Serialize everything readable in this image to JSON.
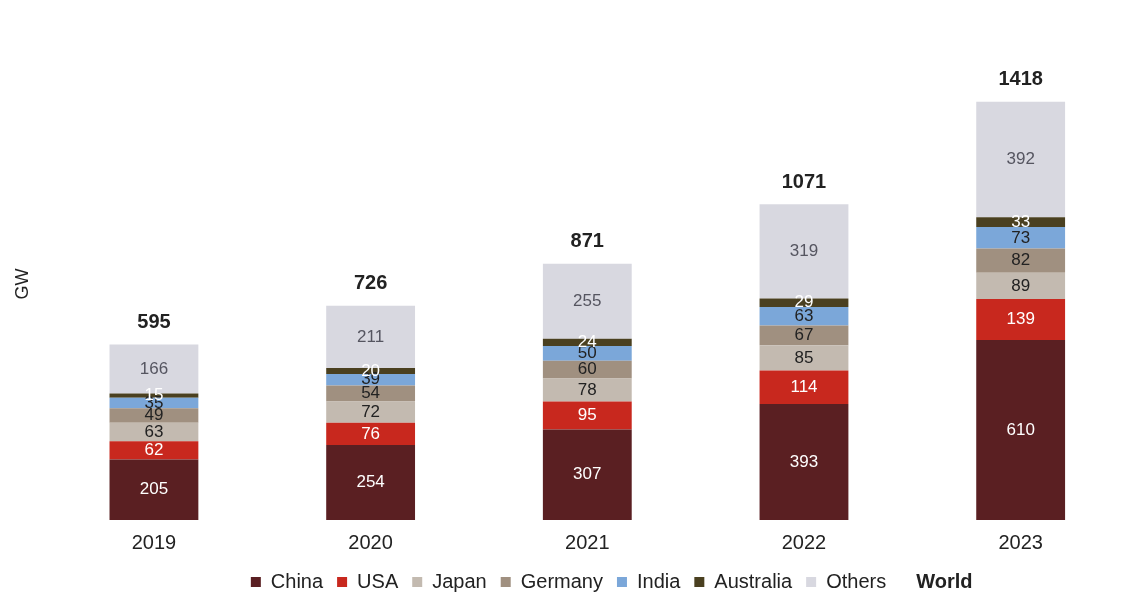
{
  "chart_data": {
    "type": "bar",
    "stacked": true,
    "ylabel": "GW",
    "categories": [
      "2019",
      "2020",
      "2021",
      "2022",
      "2023"
    ],
    "series": [
      {
        "name": "China",
        "color": "#5a1f22",
        "values": [
          205,
          254,
          307,
          393,
          610
        ]
      },
      {
        "name": "USA",
        "color": "#c8281e",
        "values": [
          62,
          76,
          95,
          114,
          139
        ]
      },
      {
        "name": "Japan",
        "color": "#c3bab0",
        "values": [
          63,
          72,
          78,
          85,
          89
        ]
      },
      {
        "name": "Germany",
        "color": "#a09080",
        "values": [
          49,
          54,
          60,
          67,
          82
        ]
      },
      {
        "name": "India",
        "color": "#7ba7d9",
        "values": [
          35,
          39,
          50,
          63,
          73
        ]
      },
      {
        "name": "Australia",
        "color": "#4a4020",
        "values": [
          15,
          20,
          24,
          29,
          33
        ]
      },
      {
        "name": "Others",
        "color": "#d8d8e0",
        "values": [
          166,
          211,
          255,
          319,
          392
        ]
      }
    ],
    "totals": [
      "595",
      "726",
      "871",
      "1071",
      "1418"
    ],
    "annotations": [
      "World"
    ],
    "data_labels": true,
    "legend": "bottom",
    "grid": false,
    "tick_labels": "x"
  }
}
